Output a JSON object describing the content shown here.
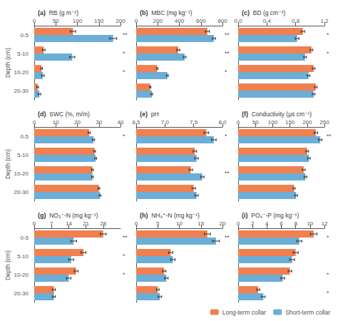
{
  "chart_data": [
    {
      "type": "bar",
      "orientation": "horizontal",
      "title": "(a)",
      "subtitle": "RB (g m⁻²)",
      "ylabel": "Depth (cm)",
      "categories": [
        "0-5",
        "5-10",
        "10-20",
        "20-30"
      ],
      "xlim": [
        0,
        200
      ],
      "xticks": [
        0,
        50,
        100,
        150,
        200
      ],
      "grid": false,
      "series": [
        {
          "name": "Long-term collar",
          "color": "#F08050",
          "values": [
            90,
            22,
            17,
            8
          ],
          "errors": [
            6,
            3,
            2,
            2
          ]
        },
        {
          "name": "Short-term collar",
          "color": "#6BAED6",
          "values": [
            183,
            88,
            20,
            12
          ],
          "errors": [
            8,
            6,
            3,
            3
          ]
        }
      ],
      "annotations": [
        {
          "category": "0-5",
          "text": "**"
        },
        {
          "category": "5-10",
          "text": "*"
        },
        {
          "category": "10-20",
          "text": "*"
        }
      ]
    },
    {
      "type": "bar",
      "orientation": "horizontal",
      "title": "(b)",
      "subtitle": "MBC (mg kg⁻¹)",
      "tick_labels": "x",
      "categories": [
        "0-5",
        "5-10",
        "10-20",
        "20-30"
      ],
      "xlim": [
        0,
        800
      ],
      "xticks": [
        0,
        200,
        400,
        600,
        800
      ],
      "grid": false,
      "series": [
        {
          "name": "Long-term collar",
          "color": "#F08050",
          "values": [
            660,
            390,
            195,
            130
          ],
          "errors": [
            18,
            14,
            7,
            6
          ]
        },
        {
          "name": "Short-term collar",
          "color": "#6BAED6",
          "values": [
            720,
            450,
            290,
            145
          ],
          "errors": [
            15,
            12,
            8,
            7
          ]
        }
      ],
      "annotations": [
        {
          "category": "0-5",
          "text": "**"
        },
        {
          "category": "5-10",
          "text": "**"
        },
        {
          "category": "10-20",
          "text": "*"
        }
      ]
    },
    {
      "type": "bar",
      "orientation": "horizontal",
      "title": "(c)",
      "subtitle": "BD (g cm⁻³)",
      "tick_labels": "x",
      "categories": [
        "0-5",
        "5-10",
        "10-20",
        "20-30"
      ],
      "xlim": [
        0,
        1.2
      ],
      "xticks": [
        {
          "value": 0,
          "label": "0.0"
        },
        0.4,
        0.8,
        1.2
      ],
      "grid": false,
      "series": [
        {
          "name": "Long-term collar",
          "color": "#F08050",
          "values": [
            0.9,
            1.02,
            1.05,
            1.08
          ],
          "errors": [
            0.025,
            0.018,
            0.018,
            0.018
          ]
        },
        {
          "name": "Short-term collar",
          "color": "#6BAED6",
          "values": [
            0.82,
            0.93,
            0.98,
            1.05
          ],
          "errors": [
            0.025,
            0.018,
            0.018,
            0.018
          ]
        }
      ],
      "annotations": [
        {
          "category": "0-5",
          "text": "*"
        },
        {
          "category": "5-10",
          "text": "*"
        }
      ]
    },
    {
      "type": "bar",
      "orientation": "horizontal",
      "title": "(d)",
      "subtitle": "SWC (%, m/m)",
      "ylabel": "Depth (cm)",
      "categories": [
        "0-5",
        "5-10",
        "10-20",
        "20-30"
      ],
      "xlim": [
        0,
        40
      ],
      "xticks": [
        0,
        10,
        20,
        30,
        40
      ],
      "grid": false,
      "series": [
        {
          "name": "Long-term collar",
          "color": "#F08050",
          "values": [
            25.5,
            28.0,
            27.0,
            30.0
          ],
          "errors": [
            0.5,
            0.4,
            0.4,
            0.4
          ]
        },
        {
          "name": "Short-term collar",
          "color": "#6BAED6",
          "values": [
            27.5,
            28.5,
            27.0,
            30.5
          ],
          "errors": [
            0.5,
            0.4,
            0.4,
            0.4
          ]
        }
      ],
      "annotations": [
        {
          "category": "0-5",
          "text": "*"
        }
      ]
    },
    {
      "type": "bar",
      "orientation": "horizontal",
      "title": "(e)",
      "subtitle": "pH",
      "tick_labels": "x",
      "categories": [
        "0-5",
        "5-10",
        "10-20",
        "20-30"
      ],
      "xlim": [
        6.5,
        8.0
      ],
      "xticks": [
        6.5,
        {
          "value": 7,
          "label": "7.0"
        },
        7.5,
        {
          "value": 8,
          "label": "8.0"
        }
      ],
      "grid": false,
      "series": [
        {
          "name": "Long-term collar",
          "color": "#F08050",
          "values": [
            7.72,
            7.52,
            7.45,
            7.5
          ],
          "errors": [
            0.04,
            0.03,
            0.03,
            0.03
          ]
        },
        {
          "name": "Short-term collar",
          "color": "#6BAED6",
          "values": [
            7.85,
            7.55,
            7.65,
            7.55
          ],
          "errors": [
            0.04,
            0.03,
            0.03,
            0.03
          ]
        }
      ],
      "annotations": [
        {
          "category": "0-5",
          "text": "*"
        },
        {
          "category": "10-20",
          "text": "**"
        }
      ]
    },
    {
      "type": "bar",
      "orientation": "horizontal",
      "title": "(f)",
      "subtitle": "Conductivity (µs cm⁻¹)",
      "tick_labels": "x",
      "categories": [
        "0-5",
        "5-10",
        "10-20",
        "20-30"
      ],
      "xlim": [
        0,
        250
      ],
      "xticks": [
        0,
        50,
        100,
        150,
        200,
        250
      ],
      "grid": false,
      "series": [
        {
          "name": "Long-term collar",
          "color": "#F08050",
          "values": [
            225,
            200,
            190,
            162
          ],
          "errors": [
            5,
            4,
            4,
            3
          ]
        },
        {
          "name": "Short-term collar",
          "color": "#6BAED6",
          "values": [
            238,
            205,
            195,
            168
          ],
          "errors": [
            5,
            4,
            4,
            4
          ]
        }
      ],
      "annotations": [
        {
          "category": "0-5",
          "text": "**"
        }
      ]
    },
    {
      "type": "bar",
      "orientation": "horizontal",
      "title": "(g)",
      "subtitle": "NO₃⁻-N (mg kg⁻¹)",
      "ylabel": "Depth (cm)",
      "categories": [
        "0-5",
        "5-10",
        "10-20",
        "20-30"
      ],
      "xlim": [
        0,
        35
      ],
      "xticks": [
        0,
        7,
        14,
        21,
        28
      ],
      "grid": false,
      "series": [
        {
          "name": "Long-term collar",
          "color": "#F08050",
          "values": [
            28,
            20,
            17,
            8
          ],
          "errors": [
            1.2,
            1.0,
            0.8,
            0.6
          ]
        },
        {
          "name": "Short-term collar",
          "color": "#6BAED6",
          "values": [
            16,
            15,
            14,
            8
          ],
          "errors": [
            1.2,
            1.0,
            0.9,
            0.6
          ]
        }
      ],
      "annotations": [
        {
          "category": "0-5",
          "text": "**"
        },
        {
          "category": "5-10",
          "text": "*"
        },
        {
          "category": "10-20",
          "text": "*"
        }
      ]
    },
    {
      "type": "bar",
      "orientation": "horizontal",
      "title": "(h)",
      "subtitle": "NH₄⁺-N (mg kg⁻¹)",
      "tick_labels": "x",
      "categories": [
        "0-5",
        "5-10",
        "10-20",
        "20-30"
      ],
      "xlim": [
        0,
        20
      ],
      "xticks": [
        0,
        5,
        10,
        15,
        20
      ],
      "grid": false,
      "series": [
        {
          "name": "Long-term collar",
          "color": "#F08050",
          "values": [
            16.5,
            8.0,
            6.5,
            5.0
          ],
          "errors": [
            0.7,
            0.5,
            0.4,
            0.3
          ]
        },
        {
          "name": "Short-term collar",
          "color": "#6BAED6",
          "values": [
            18.5,
            8.5,
            7.0,
            5.5
          ],
          "errors": [
            0.8,
            0.5,
            0.4,
            0.4
          ]
        }
      ],
      "annotations": [
        {
          "category": "0-5",
          "text": "**"
        }
      ]
    },
    {
      "type": "bar",
      "orientation": "horizontal",
      "title": "(i)",
      "subtitle": "PO₄⁻-P (mg kg⁻¹)",
      "tick_labels": "x",
      "categories": [
        "0-5",
        "5-10",
        "10-20",
        "20-30"
      ],
      "xlim": [
        0,
        12
      ],
      "xticks": [
        0,
        2,
        4,
        6,
        8,
        10,
        12
      ],
      "grid": false,
      "legend": "lower right",
      "series": [
        {
          "name": "Long-term collar",
          "color": "#F08050",
          "values": [
            10.5,
            8.0,
            7.2,
            2.8
          ],
          "errors": [
            0.45,
            0.35,
            0.25,
            0.2
          ]
        },
        {
          "name": "Short-term collar",
          "color": "#6BAED6",
          "values": [
            8.5,
            7.5,
            6.2,
            3.5
          ],
          "errors": [
            0.35,
            0.35,
            0.25,
            0.25
          ]
        }
      ],
      "annotations": [
        {
          "category": "0-5",
          "text": "*"
        },
        {
          "category": "10-20",
          "text": "*"
        },
        {
          "category": "20-30",
          "text": "*"
        }
      ]
    }
  ]
}
